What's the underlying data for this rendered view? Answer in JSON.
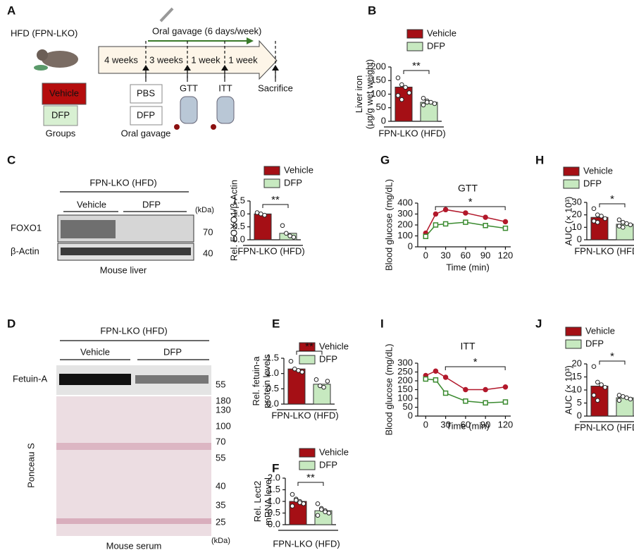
{
  "panel_labels": [
    "A",
    "B",
    "C",
    "D",
    "E",
    "F",
    "G",
    "H",
    "I",
    "J"
  ],
  "panel_a": {
    "model": "HFD (FPN-LKO)",
    "groups": [
      "Vehicle",
      "DFP"
    ],
    "groups_label": "Groups",
    "gavage_title": "Oral gavage (6 days/week)",
    "periods": [
      "4 weeks",
      "3 weeks",
      "1 week",
      "1 week"
    ],
    "treatments": [
      "PBS",
      "DFP"
    ],
    "treatments_label": "Oral gavage",
    "tests": [
      "GTT",
      "ITT"
    ],
    "end": "Sacrifice"
  },
  "panel_c_blot": {
    "model": "FPN-LKO (HFD)",
    "groups": [
      "Vehicle",
      "DFP"
    ],
    "unit": "(kDa)",
    "proteins": [
      "FOXO1",
      "β-Actin"
    ],
    "markers": [
      "70",
      "40"
    ],
    "tissue": "Mouse liver"
  },
  "panel_d_blot": {
    "model": "FPN-LKO (HFD)",
    "groups": [
      "Vehicle",
      "DFP"
    ],
    "protein": "Fetuin-A",
    "protein_marker": "55",
    "stain": "Ponceau S",
    "markers": [
      "180",
      "130",
      "100",
      "70",
      "55",
      "40",
      "35",
      "25"
    ],
    "unit": "(kDa)",
    "tissue": "Mouse serum"
  },
  "chart_data": [
    {
      "type": "bar",
      "ylabel": [
        "Liver iron",
        "(μg/g wet weight)"
      ],
      "xlabel": "FPN-LKO (HFD)",
      "annotation": "**",
      "ylim": [
        0,
        200
      ],
      "yticks": [
        0,
        50,
        100,
        150,
        200
      ],
      "series": [
        {
          "name": "Vehicle",
          "color": "#a50f15",
          "values": [
            126
          ],
          "points": [
            160,
            135,
            125,
            105,
            95,
            80
          ]
        },
        {
          "name": "DFP",
          "color": "#c7e9c0",
          "values": [
            70
          ],
          "points": [
            85,
            75,
            70,
            65,
            60,
            70
          ]
        }
      ]
    },
    {
      "type": "bar",
      "ylabel": [
        "Rel. FOXO1/β-Actin"
      ],
      "xlabel": "FPN-LKO (HFD)",
      "annotation": "**",
      "ylim": [
        0,
        1.5
      ],
      "yticks": [
        {
          "value": 0,
          "label": "0.0"
        },
        {
          "value": 0.5,
          "label": "0.5"
        },
        {
          "value": 1,
          "label": "1.0"
        },
        {
          "value": 1.5,
          "label": "1.5"
        }
      ],
      "series": [
        {
          "name": "Vehicle",
          "color": "#a50f15",
          "values": [
            1.0
          ],
          "points": [
            1.05,
            1.0,
            0.95
          ]
        },
        {
          "name": "DFP",
          "color": "#c7e9c0",
          "values": [
            0.25
          ],
          "points": [
            0.55,
            0.25,
            0.15,
            0.1
          ]
        }
      ]
    },
    {
      "type": "bar",
      "ylabel": [
        "Rel. fetuin-a",
        "protein levels"
      ],
      "xlabel": "FPN-LKO (HFD)",
      "annotation": "**",
      "ylim": [
        0,
        1.5
      ],
      "yticks": [
        {
          "value": 0,
          "label": "0.0"
        },
        {
          "value": 0.5,
          "label": "0.5"
        },
        {
          "value": 1,
          "label": "1.0"
        },
        {
          "value": 1.5,
          "label": "1.5"
        }
      ],
      "series": [
        {
          "name": "Vehicle",
          "color": "#a50f15",
          "values": [
            1.15
          ],
          "points": [
            1.4,
            1.15,
            1.1,
            1.05
          ]
        },
        {
          "name": "DFP",
          "color": "#c7e9c0",
          "values": [
            0.65
          ],
          "points": [
            0.8,
            0.6,
            0.55,
            0.75
          ]
        }
      ]
    },
    {
      "type": "bar",
      "ylabel": [
        "Rel. Lect2",
        "mRNA level"
      ],
      "xlabel": "FPN-LKO (HFD)",
      "annotation": "**",
      "ylim": [
        0,
        2
      ],
      "yticks": [
        {
          "value": 0,
          "label": "0.0"
        },
        {
          "value": 0.5,
          "label": "0.5"
        },
        {
          "value": 1,
          "label": "1.0"
        },
        {
          "value": 1.5,
          "label": "1.5"
        },
        {
          "value": 2,
          "label": "2.0"
        }
      ],
      "series": [
        {
          "name": "Vehicle",
          "color": "#a50f15",
          "values": [
            1.0
          ],
          "points": [
            1.3,
            1.1,
            1.0,
            0.9,
            0.8,
            1.05,
            0.95
          ]
        },
        {
          "name": "DFP",
          "color": "#c7e9c0",
          "values": [
            0.6
          ],
          "points": [
            0.9,
            0.7,
            0.6,
            0.5,
            0.4,
            0.65,
            0.55
          ]
        }
      ]
    },
    {
      "type": "line",
      "title": "GTT",
      "ylabel": [
        "Blood glucose (mg/dL)"
      ],
      "xlabel": "Time (min)",
      "annotation": "*",
      "x": [
        0,
        15,
        30,
        60,
        90,
        120
      ],
      "xlim": [
        -12,
        128
      ],
      "xticks": [
        0,
        30,
        60,
        90,
        120
      ],
      "ylim": [
        0,
        400
      ],
      "yticks": [
        0,
        100,
        200,
        300,
        400
      ],
      "series": [
        {
          "name": "Vehicle",
          "color": "#b2182b",
          "marker": "circle",
          "values": [
            125,
            300,
            340,
            310,
            270,
            230
          ]
        },
        {
          "name": "DFP",
          "color": "#3a8a2f",
          "marker": "square",
          "values": [
            95,
            200,
            210,
            225,
            195,
            170
          ]
        }
      ]
    },
    {
      "type": "bar",
      "ylabel": [
        "AUC (× 10³)"
      ],
      "xlabel": "FPN-LKO (HFD)",
      "annotation": "*",
      "ylim": [
        0,
        30
      ],
      "yticks": [
        0,
        10,
        20,
        30
      ],
      "series": [
        {
          "name": "Vehicle",
          "color": "#a50f15",
          "values": [
            18
          ],
          "points": [
            25,
            20,
            19,
            17,
            15,
            14
          ]
        },
        {
          "name": "DFP",
          "color": "#c7e9c0",
          "values": [
            12.5
          ],
          "points": [
            16,
            14,
            13,
            12,
            11,
            10
          ]
        }
      ]
    },
    {
      "type": "line",
      "title": "ITT",
      "ylabel": [
        "Blood glucose (mg/dL)"
      ],
      "xlabel": "Time (min)",
      "annotation": "*",
      "x": [
        0,
        15,
        30,
        60,
        90,
        120
      ],
      "xlim": [
        -12,
        128
      ],
      "xticks": [
        0,
        30,
        60,
        90,
        120
      ],
      "ylim": [
        0,
        300
      ],
      "yticks": [
        0,
        50,
        100,
        150,
        200,
        250,
        300
      ],
      "series": [
        {
          "name": "Vehicle",
          "color": "#b2182b",
          "marker": "circle",
          "values": [
            230,
            255,
            220,
            150,
            150,
            165
          ]
        },
        {
          "name": "DFP",
          "color": "#3a8a2f",
          "marker": "square",
          "values": [
            210,
            205,
            130,
            85,
            75,
            80
          ]
        }
      ]
    },
    {
      "type": "bar",
      "ylabel": [
        "AUC (× 10³)"
      ],
      "xlabel": "FPN-LKO (HFD)",
      "annotation": "*",
      "ylim": [
        0,
        20
      ],
      "yticks": [
        0,
        5,
        10,
        15,
        20
      ],
      "series": [
        {
          "name": "Vehicle",
          "color": "#a50f15",
          "values": [
            11.5
          ],
          "points": [
            19,
            13,
            12,
            11,
            8,
            6
          ]
        },
        {
          "name": "DFP",
          "color": "#c7e9c0",
          "values": [
            7
          ],
          "points": [
            8,
            7.5,
            7,
            6.5,
            6
          ]
        }
      ]
    }
  ]
}
